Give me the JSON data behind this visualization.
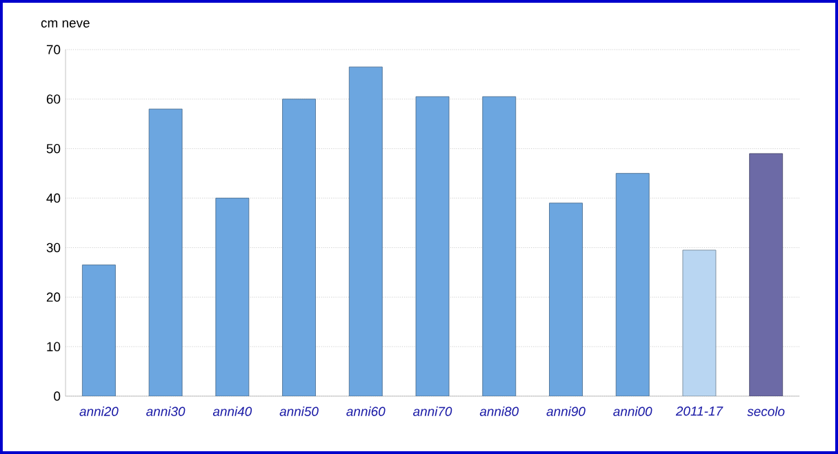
{
  "chart_data": {
    "type": "bar",
    "ylabel": "cm neve",
    "categories": [
      "anni20",
      "anni30",
      "anni40",
      "anni50",
      "anni60",
      "anni70",
      "anni80",
      "anni90",
      "anni00",
      "2011-17",
      "secolo"
    ],
    "values": [
      26.5,
      58,
      40,
      60,
      66.5,
      60.5,
      60.5,
      39,
      45,
      29.5,
      49
    ],
    "colors": [
      "#6ca6e0",
      "#6ca6e0",
      "#6ca6e0",
      "#6ca6e0",
      "#6ca6e0",
      "#6ca6e0",
      "#6ca6e0",
      "#6ca6e0",
      "#6ca6e0",
      "#b9d6f2",
      "#6c6aa6"
    ],
    "ylim": [
      0,
      70
    ],
    "yticks": [
      0,
      10,
      20,
      30,
      40,
      50,
      60,
      70
    ],
    "grid": "y"
  }
}
